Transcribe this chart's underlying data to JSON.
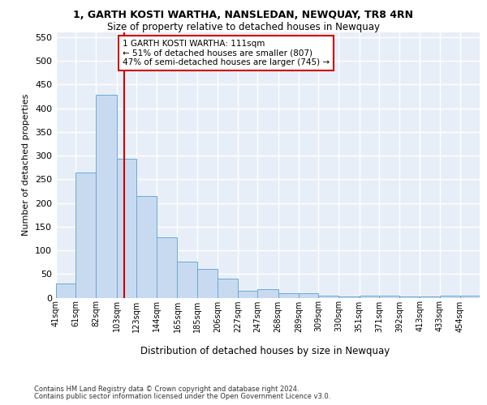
{
  "title": "1, GARTH KOSTI WARTHA, NANSLEDAN, NEWQUAY, TR8 4RN",
  "subtitle": "Size of property relative to detached houses in Newquay",
  "xlabel": "Distribution of detached houses by size in Newquay",
  "ylabel": "Number of detached properties",
  "bar_color": "#c8daf0",
  "bar_edgecolor": "#6aaad4",
  "vline_value": 111,
  "vline_color": "#cc0000",
  "categories": [
    "41sqm",
    "61sqm",
    "82sqm",
    "103sqm",
    "123sqm",
    "144sqm",
    "165sqm",
    "185sqm",
    "206sqm",
    "227sqm",
    "247sqm",
    "268sqm",
    "289sqm",
    "309sqm",
    "330sqm",
    "351sqm",
    "371sqm",
    "392sqm",
    "413sqm",
    "433sqm",
    "454sqm"
  ],
  "bin_edges": [
    41,
    61,
    82,
    103,
    123,
    144,
    165,
    185,
    206,
    227,
    247,
    268,
    289,
    309,
    330,
    351,
    371,
    392,
    413,
    433,
    454,
    474
  ],
  "values": [
    30,
    265,
    428,
    293,
    215,
    128,
    76,
    61,
    40,
    14,
    18,
    10,
    10,
    5,
    2,
    5,
    5,
    3,
    2,
    5,
    5
  ],
  "ylim": [
    0,
    560
  ],
  "yticks": [
    0,
    50,
    100,
    150,
    200,
    250,
    300,
    350,
    400,
    450,
    500,
    550
  ],
  "annotation_text": "1 GARTH KOSTI WARTHA: 111sqm\n← 51% of detached houses are smaller (807)\n47% of semi-detached houses are larger (745) →",
  "annotation_box_facecolor": "#ffffff",
  "annotation_box_edgecolor": "#cc0000",
  "bg_color": "#e8eef8",
  "grid_color": "#ffffff",
  "footer1": "Contains HM Land Registry data © Crown copyright and database right 2024.",
  "footer2": "Contains public sector information licensed under the Open Government Licence v3.0."
}
